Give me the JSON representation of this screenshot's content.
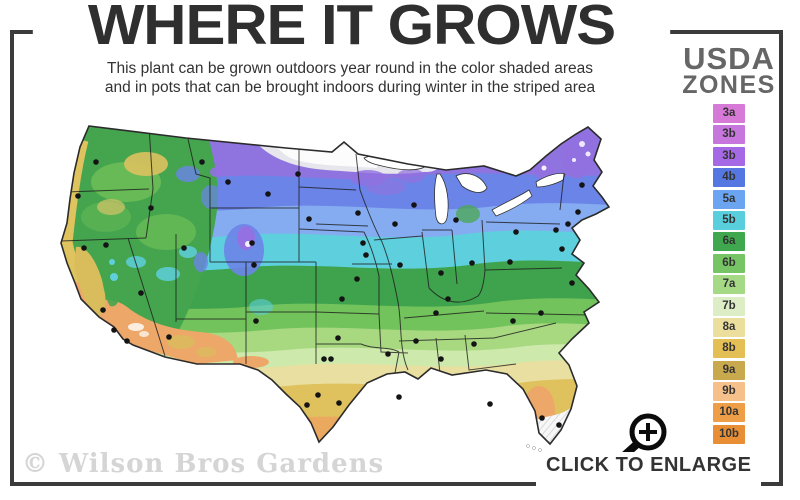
{
  "header": {
    "title": "WHERE IT GROWS",
    "subtitle_line1": "This plant can be grown outdoors year round in the color shaded areas",
    "subtitle_line2": "and in pots that can be brought indoors during winter in the striped area"
  },
  "legend": {
    "title_line1": "USDA",
    "title_line2": "ZONES",
    "zones": [
      {
        "label": "3a",
        "color": "#d77ad7"
      },
      {
        "label": "3b",
        "color": "#c676dd"
      },
      {
        "label": "3b",
        "color": "#a569e6"
      },
      {
        "label": "4b",
        "color": "#5577e2"
      },
      {
        "label": "5a",
        "color": "#6ba4f0"
      },
      {
        "label": "5b",
        "color": "#59cfdd"
      },
      {
        "label": "6a",
        "color": "#3fa84f"
      },
      {
        "label": "6b",
        "color": "#77c465"
      },
      {
        "label": "7a",
        "color": "#a5d985"
      },
      {
        "label": "7b",
        "color": "#ddeec6"
      },
      {
        "label": "8a",
        "color": "#ecdf9e"
      },
      {
        "label": "8b",
        "color": "#e4bf55"
      },
      {
        "label": "9a",
        "color": "#c9a94e"
      },
      {
        "label": "9b",
        "color": "#f5c089"
      },
      {
        "label": "10a",
        "color": "#ee9e47"
      },
      {
        "label": "10b",
        "color": "#e88f35"
      }
    ]
  },
  "footer": {
    "watermark": "© Wilson Bros Gardens",
    "enlarge_label": "CLICK TO ENLARGE"
  },
  "map": {
    "name": "usda-plant-hardiness-zone-map",
    "dot_color": "#141414",
    "city_dots": [
      [
        80,
        50
      ],
      [
        62,
        84
      ],
      [
        135,
        96
      ],
      [
        186,
        50
      ],
      [
        212,
        70
      ],
      [
        252,
        82
      ],
      [
        282,
        62
      ],
      [
        293,
        107
      ],
      [
        342,
        101
      ],
      [
        90,
        133
      ],
      [
        68,
        136
      ],
      [
        168,
        136
      ],
      [
        125,
        181
      ],
      [
        87,
        198
      ],
      [
        98,
        218
      ],
      [
        111,
        229
      ],
      [
        153,
        225
      ],
      [
        240,
        209
      ],
      [
        236,
        131
      ],
      [
        238,
        153
      ],
      [
        347,
        131
      ],
      [
        350,
        143
      ],
      [
        341,
        167
      ],
      [
        326,
        187
      ],
      [
        384,
        153
      ],
      [
        379,
        112
      ],
      [
        398,
        93
      ],
      [
        440,
        108
      ],
      [
        425,
        161
      ],
      [
        456,
        151
      ],
      [
        494,
        150
      ],
      [
        500,
        120
      ],
      [
        540,
        118
      ],
      [
        562,
        100
      ],
      [
        566,
        73
      ],
      [
        552,
        112
      ],
      [
        546,
        137
      ],
      [
        556,
        171
      ],
      [
        525,
        201
      ],
      [
        497,
        209
      ],
      [
        458,
        232
      ],
      [
        432,
        187
      ],
      [
        420,
        201
      ],
      [
        400,
        229
      ],
      [
        372,
        242
      ],
      [
        322,
        226
      ],
      [
        308,
        247
      ],
      [
        315,
        247
      ],
      [
        302,
        283
      ],
      [
        291,
        293
      ],
      [
        323,
        291
      ],
      [
        383,
        285
      ],
      [
        425,
        247
      ],
      [
        474,
        292
      ],
      [
        526,
        306
      ],
      [
        543,
        313
      ]
    ]
  }
}
